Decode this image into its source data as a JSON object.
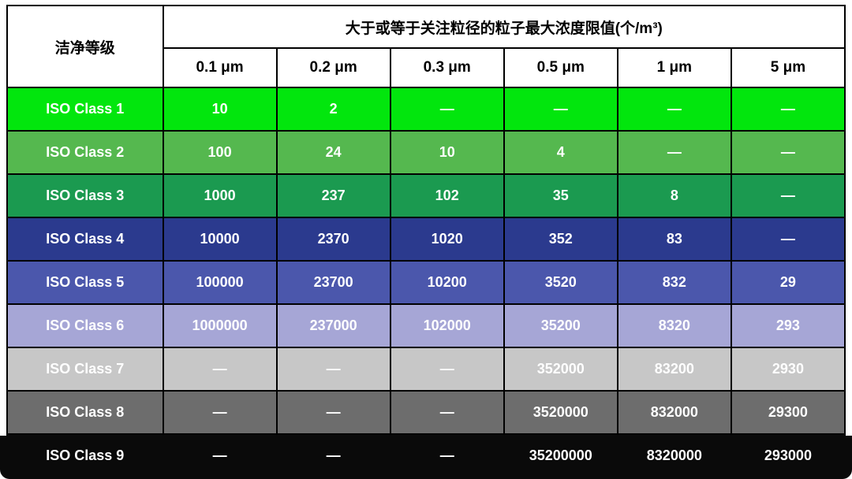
{
  "table": {
    "corner_header": "洁净等级",
    "group_header": "大于或等于关注粒径的粒子最大浓度限值(个/m³)",
    "columns": [
      "0.1 μm",
      "0.2 μm",
      "0.3 μm",
      "0.5 μm",
      "1 μm",
      "5 μm"
    ],
    "border_color": "#000000",
    "header_bg": "#ffffff",
    "header_fg": "#000000",
    "rows": [
      {
        "label": "ISO Class 1",
        "bg": "#02e60d",
        "fg": "#ffffff",
        "values": [
          "10",
          "2",
          "—",
          "—",
          "—",
          "—"
        ]
      },
      {
        "label": "ISO Class 2",
        "bg": "#55b84f",
        "fg": "#ffffff",
        "values": [
          "100",
          "24",
          "10",
          "4",
          "—",
          "—"
        ]
      },
      {
        "label": "ISO Class 3",
        "bg": "#1b9a50",
        "fg": "#ffffff",
        "values": [
          "1000",
          "237",
          "102",
          "35",
          "8",
          "—"
        ]
      },
      {
        "label": "ISO Class 4",
        "bg": "#2b3a8e",
        "fg": "#ffffff",
        "values": [
          "10000",
          "2370",
          "1020",
          "352",
          "83",
          "—"
        ]
      },
      {
        "label": "ISO Class 5",
        "bg": "#4b57ac",
        "fg": "#ffffff",
        "values": [
          "100000",
          "23700",
          "10200",
          "3520",
          "832",
          "29"
        ]
      },
      {
        "label": "ISO Class 6",
        "bg": "#a6a6d6",
        "fg": "#ffffff",
        "values": [
          "1000000",
          "237000",
          "102000",
          "35200",
          "8320",
          "293"
        ]
      },
      {
        "label": "ISO Class 7",
        "bg": "#c7c7c7",
        "fg": "#ffffff",
        "values": [
          "—",
          "—",
          "—",
          "352000",
          "83200",
          "2930"
        ]
      },
      {
        "label": "ISO Class 8",
        "bg": "#6d6d6d",
        "fg": "#ffffff",
        "values": [
          "—",
          "—",
          "—",
          "3520000",
          "832000",
          "29300"
        ]
      },
      {
        "label": "ISO Class 9",
        "bg": "#0a0a0a",
        "fg": "#ffffff",
        "values": [
          "—",
          "—",
          "—",
          "35200000",
          "8320000",
          "293000"
        ]
      }
    ]
  },
  "chart_data": {
    "type": "table",
    "title": "大于或等于关注粒径的粒子最大浓度限值(个/m³)",
    "row_header": "洁净等级",
    "columns": [
      "0.1 μm",
      "0.2 μm",
      "0.3 μm",
      "0.5 μm",
      "1 μm",
      "5 μm"
    ],
    "rows": [
      "ISO Class 1",
      "ISO Class 2",
      "ISO Class 3",
      "ISO Class 4",
      "ISO Class 5",
      "ISO Class 6",
      "ISO Class 7",
      "ISO Class 8",
      "ISO Class 9"
    ],
    "values": [
      [
        10,
        2,
        null,
        null,
        null,
        null
      ],
      [
        100,
        24,
        10,
        4,
        null,
        null
      ],
      [
        1000,
        237,
        102,
        35,
        8,
        null
      ],
      [
        10000,
        2370,
        1020,
        352,
        83,
        null
      ],
      [
        100000,
        23700,
        10200,
        3520,
        832,
        29
      ],
      [
        1000000,
        237000,
        102000,
        35200,
        8320,
        293
      ],
      [
        null,
        null,
        null,
        352000,
        83200,
        2930
      ],
      [
        null,
        null,
        null,
        3520000,
        832000,
        29300
      ],
      [
        null,
        null,
        null,
        35200000,
        8320000,
        293000
      ]
    ],
    "null_display": "—",
    "row_colors": [
      "#02e60d",
      "#55b84f",
      "#1b9a50",
      "#2b3a8e",
      "#4b57ac",
      "#a6a6d6",
      "#c7c7c7",
      "#6d6d6d",
      "#0a0a0a"
    ]
  }
}
